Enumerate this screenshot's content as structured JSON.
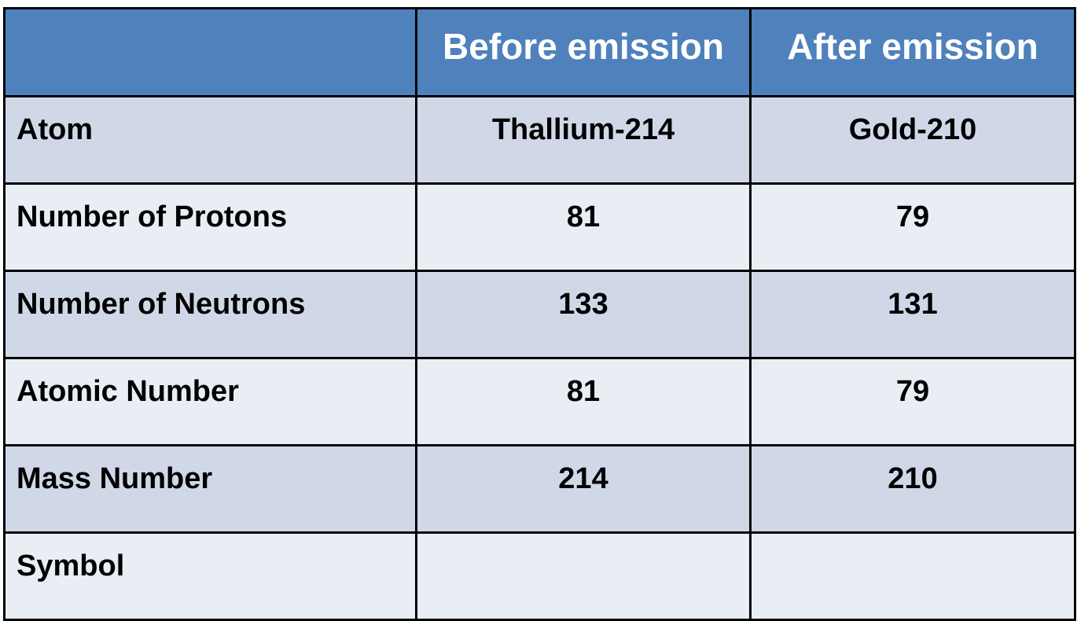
{
  "table": {
    "columns": [
      "",
      "Before emission",
      "After emission"
    ],
    "rows": [
      {
        "label": "Atom",
        "before": "Thallium-214",
        "after": "Gold-210"
      },
      {
        "label": "Number of Protons",
        "before": "81",
        "after": "79"
      },
      {
        "label": "Number of Neutrons",
        "before": "133",
        "after": "131"
      },
      {
        "label": "Atomic Number",
        "before": "81",
        "after": "79"
      },
      {
        "label": "Mass Number",
        "before": "214",
        "after": "210"
      },
      {
        "label": "Symbol",
        "before": "",
        "after": ""
      }
    ]
  },
  "colors": {
    "header_bg": "#4f81bd",
    "row_dark": "#d0d8e8",
    "row_light": "#e9edf4"
  }
}
